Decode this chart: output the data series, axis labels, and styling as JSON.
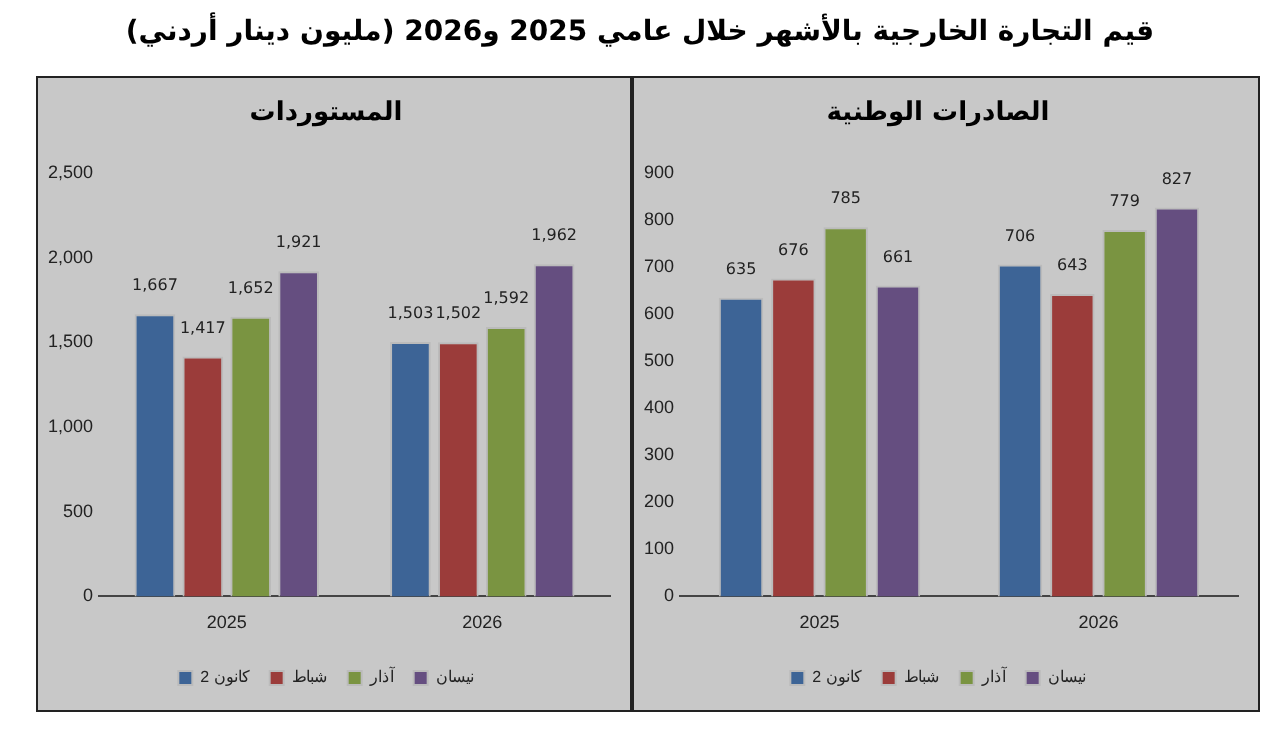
{
  "chart_data": [
    {
      "type": "other",
      "title": "قيم التجارة الخارجية بالأشهر خلال عامي 2025 و2026 (مليون دينار أردني)"
    },
    {
      "type": "bar",
      "title": "المستوردات",
      "categories": [
        "2025",
        "2026"
      ],
      "ylim": [
        0,
        2500
      ],
      "yticks": [
        0,
        500,
        {
          "value": 1000,
          "label": "1,000"
        },
        {
          "value": 1500,
          "label": "1,500"
        },
        {
          "value": 2000,
          "label": "2,000"
        },
        {
          "value": 2500,
          "label": "2,500"
        }
      ],
      "legend": "bottom",
      "series": [
        {
          "name": "كانون 2",
          "color": "#3d6496",
          "values": [
            1667,
            1503
          ],
          "value_labels": [
            "1,667",
            "1,503"
          ]
        },
        {
          "name": "شباط",
          "color": "#9b3c3a",
          "values": [
            1417,
            1502
          ],
          "value_labels": [
            "1,417",
            "1,502"
          ]
        },
        {
          "name": "آذار",
          "color": "#7a9441",
          "values": [
            1652,
            1592
          ],
          "value_labels": [
            "1,652",
            "1,592"
          ]
        },
        {
          "name": "نيسان",
          "color": "#654e80",
          "values": [
            1921,
            1962
          ],
          "value_labels": [
            "1,921",
            "1,962"
          ]
        }
      ]
    },
    {
      "type": "bar",
      "title": "الصادرات الوطنية",
      "categories": [
        "2025",
        "2026"
      ],
      "ylim": [
        0,
        900
      ],
      "yticks": [
        0,
        100,
        200,
        300,
        400,
        500,
        600,
        700,
        800,
        900
      ],
      "legend": "bottom",
      "data_labels": true,
      "series": [
        {
          "name": "كانون 2",
          "color": "#3d6496",
          "values": [
            635,
            706
          ]
        },
        {
          "name": "شباط",
          "color": "#9b3c3a",
          "values": [
            676,
            643
          ]
        },
        {
          "name": "آذار",
          "color": "#7a9441",
          "values": [
            785,
            779
          ]
        },
        {
          "name": "نيسان",
          "color": "#654e80",
          "values": [
            661,
            827
          ]
        }
      ]
    }
  ]
}
